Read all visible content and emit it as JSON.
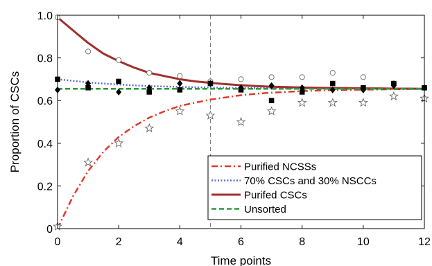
{
  "chart_data": {
    "type": "line",
    "title": "",
    "xlabel": "Time points",
    "ylabel": "Proportion of CSCs",
    "xlim": [
      0,
      12
    ],
    "ylim": [
      0,
      1.0
    ],
    "x_ticks": [
      0,
      2,
      4,
      6,
      8,
      10,
      12
    ],
    "y_ticks": [
      0,
      0.2,
      0.4,
      0.6,
      0.8,
      1.0
    ],
    "x_tick_labels": [
      "0",
      "2",
      "4",
      "6",
      "8",
      "10",
      "12"
    ],
    "y_tick_labels": [
      "0",
      "0.2",
      "0.4",
      "0.6",
      "0.8",
      "1.0"
    ],
    "grid": false,
    "legend_position": "bottom-right",
    "vertical_reference_line": {
      "x": 5,
      "style": "dashed",
      "color": "#777777"
    },
    "series": [
      {
        "name": "Purified NCSSs",
        "style": "dash-dot",
        "color": "#e0392b",
        "x": [
          0,
          0.5,
          1,
          1.5,
          2,
          2.5,
          3,
          3.5,
          4,
          4.5,
          5,
          5.5,
          6,
          6.5,
          7,
          7.5,
          8,
          8.5,
          9,
          9.5,
          10,
          10.5,
          11,
          11.5,
          12
        ],
        "values": [
          0.0,
          0.15,
          0.27,
          0.36,
          0.43,
          0.48,
          0.52,
          0.55,
          0.575,
          0.59,
          0.605,
          0.615,
          0.625,
          0.632,
          0.637,
          0.641,
          0.644,
          0.647,
          0.649,
          0.65,
          0.651,
          0.652,
          0.653,
          0.654,
          0.655
        ]
      },
      {
        "name": "70% CSCs and 30% NSCCs",
        "style": "dotted",
        "color": "#5b6fd6",
        "x": [
          0,
          1,
          2,
          3,
          4,
          5,
          6,
          7,
          8,
          9,
          10,
          11,
          12
        ],
        "values": [
          0.7,
          0.685,
          0.675,
          0.668,
          0.664,
          0.661,
          0.659,
          0.658,
          0.657,
          0.656,
          0.656,
          0.655,
          0.655
        ]
      },
      {
        "name": "Purifed CSCs",
        "style": "solid",
        "color": "#a0302c",
        "x": [
          0,
          0.5,
          1,
          1.5,
          2,
          2.5,
          3,
          3.5,
          4,
          4.5,
          5,
          5.5,
          6,
          6.5,
          7,
          7.5,
          8,
          8.5,
          9,
          9.5,
          10,
          10.5,
          11,
          11.5,
          12
        ],
        "values": [
          0.99,
          0.93,
          0.87,
          0.82,
          0.785,
          0.755,
          0.73,
          0.715,
          0.7,
          0.69,
          0.683,
          0.677,
          0.672,
          0.668,
          0.665,
          0.663,
          0.661,
          0.66,
          0.659,
          0.658,
          0.657,
          0.657,
          0.656,
          0.656,
          0.655
        ]
      },
      {
        "name": "Unsorted",
        "style": "dashed",
        "color": "#2a9a3a",
        "x": [
          0,
          12
        ],
        "values": [
          0.655,
          0.655
        ]
      }
    ],
    "scatter": [
      {
        "marker": "open-circle",
        "x": [
          0,
          1,
          2,
          3,
          4,
          5,
          6,
          7,
          8,
          9,
          10,
          11,
          12
        ],
        "values": [
          0.99,
          0.83,
          0.79,
          0.73,
          0.715,
          0.69,
          0.7,
          0.71,
          0.71,
          0.73,
          0.71,
          0.68,
          0.66
        ]
      },
      {
        "marker": "open-star",
        "x": [
          0,
          1,
          2,
          3,
          4,
          5,
          6,
          7,
          8,
          9,
          10,
          11,
          12
        ],
        "values": [
          0.01,
          0.31,
          0.4,
          0.47,
          0.55,
          0.53,
          0.5,
          0.55,
          0.59,
          0.59,
          0.59,
          0.62,
          0.61
        ]
      },
      {
        "marker": "filled-square",
        "x": [
          0,
          1,
          2,
          3,
          4,
          5,
          6,
          7,
          8,
          9,
          10,
          11,
          12
        ],
        "values": [
          0.7,
          0.66,
          0.69,
          0.64,
          0.65,
          0.68,
          0.65,
          0.6,
          0.64,
          0.68,
          0.66,
          0.68,
          0.66
        ]
      },
      {
        "marker": "filled-diamond",
        "x": [
          0,
          1,
          2,
          3,
          4,
          5,
          6,
          7,
          8,
          9,
          10,
          11,
          12
        ],
        "values": [
          0.65,
          0.68,
          0.64,
          0.66,
          0.68,
          0.68,
          0.66,
          0.67,
          0.66,
          0.65,
          0.65,
          0.67,
          0.66
        ]
      }
    ]
  }
}
